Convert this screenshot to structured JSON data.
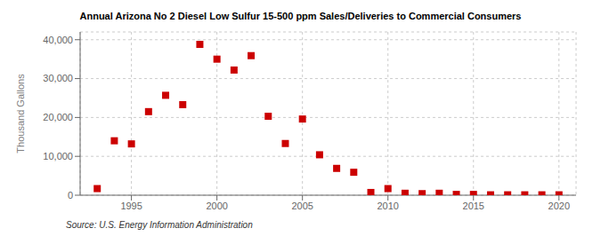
{
  "chart_data": {
    "type": "scatter",
    "title": "Annual Arizona No 2 Diesel Low Sulfur 15-500 ppm Sales/Deliveries to Commercial Consumers",
    "ylabel": "Thousand Gallons",
    "source": "Source: U.S. Energy Information Administration",
    "x": [
      1993,
      1994,
      1995,
      1996,
      1997,
      1998,
      1999,
      2000,
      2001,
      2002,
      2003,
      2004,
      2005,
      2006,
      2007,
      2008,
      2009,
      2010,
      2011,
      2012,
      2013,
      2014,
      2015,
      2016,
      2017,
      2018,
      2019,
      2020
    ],
    "values": [
      1700,
      14000,
      13200,
      21500,
      25700,
      23300,
      38800,
      35000,
      32200,
      35900,
      20300,
      13300,
      19600,
      10400,
      6900,
      5900,
      700,
      1700,
      500,
      400,
      500,
      200,
      200,
      100,
      100,
      100,
      100,
      100
    ],
    "color": "#cc0000",
    "marker": "square",
    "xlim": [
      1992,
      2021
    ],
    "xticks": [
      1995,
      2000,
      2005,
      2010,
      2015,
      2020
    ],
    "ylim": [
      0,
      42000
    ],
    "yticks": [
      0,
      {
        "value": 10000,
        "label": "10,000"
      },
      {
        "value": 20000,
        "label": "20,000"
      },
      {
        "value": 30000,
        "label": "30,000"
      },
      {
        "value": 40000,
        "label": "40,000"
      }
    ],
    "grid": true
  }
}
